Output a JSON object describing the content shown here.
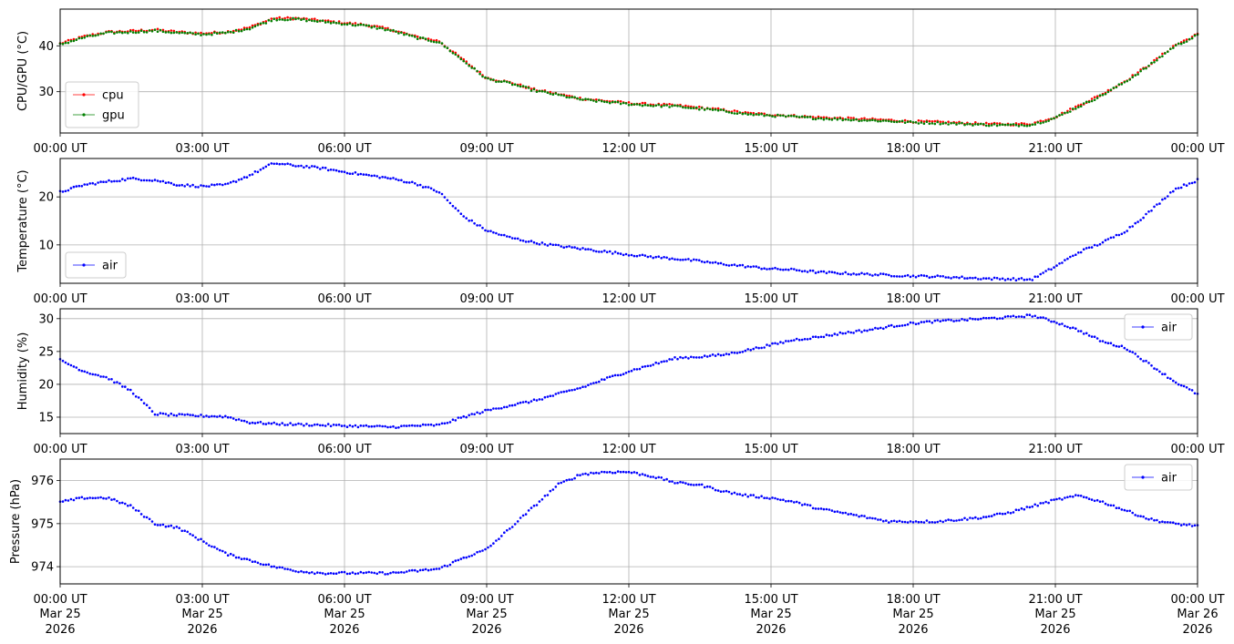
{
  "chart_data": [
    {
      "type": "scatter",
      "ylabel": "CPU/GPU (°C)",
      "ylim": [
        21,
        48
      ],
      "yticks": [
        30,
        40
      ],
      "ytick_labels": [
        "30",
        "40"
      ],
      "xticks": [
        "00:00 UT",
        "03:00 UT",
        "06:00 UT",
        "09:00 UT",
        "12:00 UT",
        "15:00 UT",
        "18:00 UT",
        "21:00 UT",
        "00:00 UT"
      ],
      "grid": true,
      "legend_position": "lower-left",
      "x_hours": [
        0,
        0.5,
        1,
        1.5,
        2,
        2.5,
        3,
        3.5,
        4,
        4.5,
        5,
        5.5,
        6,
        6.5,
        7,
        7.5,
        8,
        8.5,
        9,
        9.5,
        10,
        10.5,
        11,
        11.5,
        12,
        12.5,
        13,
        13.5,
        14,
        14.5,
        15,
        15.5,
        16,
        16.5,
        17,
        17.5,
        18,
        18.5,
        19,
        19.5,
        20,
        20.5,
        21,
        21.5,
        22,
        22.5,
        23,
        23.5,
        24
      ],
      "series": [
        {
          "name": "cpu",
          "color": "#ff0000",
          "values": [
            40.5,
            42,
            43,
            43.2,
            43.5,
            43,
            42.7,
            43,
            44,
            46,
            46,
            45.5,
            45,
            44.5,
            43.5,
            42,
            41,
            37,
            33,
            32,
            30.5,
            29.5,
            28.5,
            28,
            27.5,
            27.2,
            27,
            26.5,
            26,
            25.3,
            25,
            24.7,
            24.4,
            24.2,
            24,
            23.8,
            23.5,
            23.4,
            23.2,
            23,
            22.9,
            23,
            24.5,
            27,
            29.5,
            32.5,
            36,
            40,
            42.5
          ]
        },
        {
          "name": "gpu",
          "color": "#008000",
          "values": [
            40.3,
            41.8,
            42.8,
            43,
            43.3,
            42.8,
            42.5,
            42.8,
            43.8,
            45.8,
            45.8,
            45.3,
            44.8,
            44.3,
            43.3,
            41.8,
            40.8,
            36.8,
            32.8,
            31.8,
            30.3,
            29.3,
            28.3,
            27.8,
            27.3,
            27,
            26.8,
            26.3,
            25.8,
            25.1,
            24.8,
            24.5,
            24.2,
            24,
            23.8,
            23.6,
            23.3,
            23.2,
            23,
            22.8,
            22.7,
            22.8,
            24.3,
            26.8,
            29.3,
            32.3,
            35.8,
            39.8,
            42.3
          ]
        }
      ]
    },
    {
      "type": "scatter",
      "ylabel": "Temperature (°C)",
      "ylim": [
        2,
        28
      ],
      "yticks": [
        10,
        20
      ],
      "ytick_labels": [
        "10",
        "20"
      ],
      "xticks": [
        "00:00 UT",
        "03:00 UT",
        "06:00 UT",
        "09:00 UT",
        "12:00 UT",
        "15:00 UT",
        "18:00 UT",
        "21:00 UT",
        "00:00 UT"
      ],
      "grid": true,
      "legend_position": "lower-left",
      "x_hours": [
        0,
        0.5,
        1,
        1.5,
        2,
        2.5,
        3,
        3.5,
        4,
        4.5,
        5,
        5.5,
        6,
        6.5,
        7,
        7.5,
        8,
        8.5,
        9,
        9.5,
        10,
        10.5,
        11,
        11.5,
        12,
        12.5,
        13,
        13.5,
        14,
        14.5,
        15,
        15.5,
        16,
        16.5,
        17,
        17.5,
        18,
        18.5,
        19,
        19.5,
        20,
        20.5,
        21,
        21.5,
        22,
        22.5,
        23,
        23.5,
        24
      ],
      "series": [
        {
          "name": "air",
          "color": "#0000ff",
          "values": [
            21,
            22.5,
            23.2,
            23.8,
            23.5,
            22.5,
            22.2,
            22.5,
            24.5,
            27,
            26.5,
            26,
            25.2,
            24.5,
            23.8,
            22.8,
            21,
            16,
            13,
            11.5,
            10.5,
            9.8,
            9.2,
            8.6,
            8,
            7.5,
            7.1,
            6.6,
            6,
            5.5,
            5,
            4.8,
            4.3,
            4.1,
            3.9,
            3.7,
            3.5,
            3.4,
            3.2,
            3,
            2.9,
            2.8,
            5.5,
            8.5,
            10.5,
            13,
            17,
            21.5,
            23.5
          ]
        }
      ]
    },
    {
      "type": "scatter",
      "ylabel": "Humidity (%)",
      "ylim": [
        12.5,
        31.5
      ],
      "yticks": [
        15,
        20,
        25,
        30
      ],
      "ytick_labels": [
        "15",
        "20",
        "25",
        "30"
      ],
      "xticks": [
        "00:00 UT",
        "03:00 UT",
        "06:00 UT",
        "09:00 UT",
        "12:00 UT",
        "15:00 UT",
        "18:00 UT",
        "21:00 UT",
        "00:00 UT"
      ],
      "grid": true,
      "legend_position": "upper-right",
      "x_hours": [
        0,
        0.5,
        1,
        1.5,
        2,
        2.5,
        3,
        3.5,
        4,
        4.5,
        5,
        5.5,
        6,
        6.5,
        7,
        7.5,
        8,
        8.5,
        9,
        9.5,
        10,
        10.5,
        11,
        11.5,
        12,
        12.5,
        13,
        13.5,
        14,
        14.5,
        15,
        15.5,
        16,
        16.5,
        17,
        17.5,
        18,
        18.5,
        19,
        19.5,
        20,
        20.5,
        21,
        21.5,
        22,
        22.5,
        23,
        23.5,
        24
      ],
      "series": [
        {
          "name": "air",
          "color": "#0000ff",
          "values": [
            23.7,
            22,
            21,
            19,
            15.5,
            15.3,
            15.2,
            15.1,
            14.2,
            14,
            13.9,
            13.8,
            13.7,
            13.6,
            13.5,
            13.7,
            13.8,
            15,
            16,
            16.8,
            17.5,
            18.5,
            19.5,
            20.8,
            22,
            23,
            24,
            24.2,
            24.5,
            25.2,
            26,
            26.8,
            27.2,
            27.8,
            28.2,
            28.8,
            29.3,
            29.6,
            29.8,
            30,
            30.2,
            30.5,
            29.5,
            28.2,
            26.5,
            25.5,
            23,
            20.5,
            18.5
          ]
        }
      ]
    },
    {
      "type": "scatter",
      "ylabel": "Pressure (hPa)",
      "ylim": [
        973.6,
        976.5
      ],
      "yticks": [
        974,
        975,
        976
      ],
      "ytick_labels": [
        "974",
        "975",
        "976"
      ],
      "xticks": [
        "00:00 UT",
        "03:00 UT",
        "06:00 UT",
        "09:00 UT",
        "12:00 UT",
        "15:00 UT",
        "18:00 UT",
        "21:00 UT",
        "00:00 UT"
      ],
      "xtick_dates": [
        "Mar 25",
        "Mar 25",
        "Mar 25",
        "Mar 25",
        "Mar 25",
        "Mar 25",
        "Mar 25",
        "Mar 25",
        "Mar 26"
      ],
      "xtick_years": [
        "2026",
        "2026",
        "2026",
        "2026",
        "2026",
        "2026",
        "2026",
        "2026",
        "2026"
      ],
      "grid": true,
      "legend_position": "upper-right",
      "x_hours": [
        0,
        0.5,
        1,
        1.5,
        2,
        2.5,
        3,
        3.5,
        4,
        4.5,
        5,
        5.5,
        6,
        6.5,
        7,
        7.5,
        8,
        8.5,
        9,
        9.5,
        10,
        10.5,
        11,
        11.5,
        12,
        12.5,
        13,
        13.5,
        14,
        14.5,
        15,
        15.5,
        16,
        16.5,
        17,
        17.5,
        18,
        18.5,
        19,
        19.5,
        20,
        20.5,
        21,
        21.5,
        22,
        22.5,
        23,
        23.5,
        24
      ],
      "series": [
        {
          "name": "air",
          "color": "#0000ff",
          "values": [
            975.5,
            975.6,
            975.6,
            975.4,
            975.0,
            974.9,
            974.6,
            974.3,
            974.15,
            974.0,
            973.9,
            973.85,
            973.85,
            973.85,
            973.85,
            973.9,
            973.95,
            974.2,
            974.4,
            974.9,
            975.4,
            975.9,
            976.15,
            976.2,
            976.2,
            976.1,
            975.95,
            975.9,
            975.75,
            975.65,
            975.6,
            975.5,
            975.35,
            975.25,
            975.15,
            975.05,
            975.05,
            975.05,
            975.1,
            975.15,
            975.25,
            975.4,
            975.55,
            975.65,
            975.5,
            975.3,
            975.1,
            975.0,
            974.95
          ]
        }
      ]
    }
  ]
}
